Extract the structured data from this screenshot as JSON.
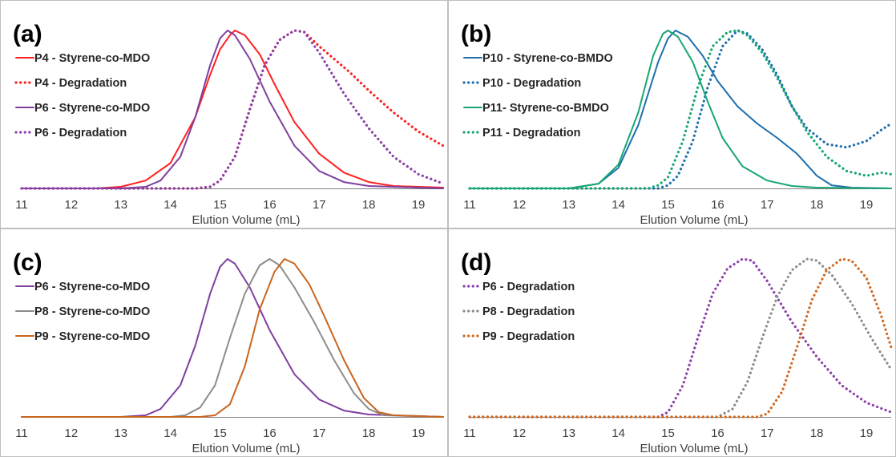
{
  "chart_data": [
    {
      "type": "line",
      "panel_label": "(a)",
      "xlabel": "Elution Volume (mL)",
      "ylabel": "",
      "xlim": [
        11,
        19.5
      ],
      "ylim": [
        0,
        1
      ],
      "xticks": [
        "11",
        "12",
        "13",
        "14",
        "15",
        "16",
        "17",
        "18",
        "19"
      ],
      "grid": false,
      "legend_position": "top-left",
      "series": [
        {
          "name": "P4 - Styrene-co-MDO",
          "color": "#ff2020",
          "style": "solid",
          "points": [
            [
              11,
              0
            ],
            [
              12.5,
              0
            ],
            [
              13,
              0.01
            ],
            [
              13.5,
              0.05
            ],
            [
              14,
              0.16
            ],
            [
              14.5,
              0.45
            ],
            [
              14.8,
              0.72
            ],
            [
              15.0,
              0.88
            ],
            [
              15.2,
              0.97
            ],
            [
              15.3,
              1.0
            ],
            [
              15.5,
              0.97
            ],
            [
              15.8,
              0.85
            ],
            [
              16.1,
              0.66
            ],
            [
              16.5,
              0.42
            ],
            [
              17,
              0.22
            ],
            [
              17.5,
              0.1
            ],
            [
              18,
              0.04
            ],
            [
              18.5,
              0.015
            ],
            [
              19,
              0.01
            ],
            [
              19.5,
              0.005
            ]
          ]
        },
        {
          "name": "P4 - Degradation",
          "color": "#ff2020",
          "style": "dotted",
          "points": [
            [
              11,
              0
            ],
            [
              14.5,
              0
            ],
            [
              14.8,
              0.01
            ],
            [
              15.0,
              0.05
            ],
            [
              15.3,
              0.2
            ],
            [
              15.6,
              0.5
            ],
            [
              15.9,
              0.78
            ],
            [
              16.2,
              0.94
            ],
            [
              16.5,
              1.0
            ],
            [
              16.7,
              0.99
            ],
            [
              17,
              0.9
            ],
            [
              17.3,
              0.82
            ],
            [
              17.6,
              0.74
            ],
            [
              18,
              0.62
            ],
            [
              18.5,
              0.48
            ],
            [
              19,
              0.36
            ],
            [
              19.5,
              0.27
            ]
          ]
        },
        {
          "name": "P6 - Styrene-co-MDO",
          "color": "#7f3f9f",
          "style": "solid",
          "points": [
            [
              11,
              0
            ],
            [
              13,
              0
            ],
            [
              13.5,
              0.01
            ],
            [
              13.8,
              0.05
            ],
            [
              14.2,
              0.2
            ],
            [
              14.5,
              0.45
            ],
            [
              14.8,
              0.78
            ],
            [
              15.0,
              0.95
            ],
            [
              15.15,
              1.0
            ],
            [
              15.3,
              0.97
            ],
            [
              15.6,
              0.82
            ],
            [
              16,
              0.55
            ],
            [
              16.5,
              0.27
            ],
            [
              17,
              0.11
            ],
            [
              17.5,
              0.04
            ],
            [
              18,
              0.015
            ],
            [
              19,
              0.005
            ],
            [
              19.5,
              0
            ]
          ]
        },
        {
          "name": "P6 - Degradation",
          "color": "#8a3fa8",
          "style": "dotted",
          "points": [
            [
              11,
              0
            ],
            [
              14.5,
              0
            ],
            [
              14.8,
              0.01
            ],
            [
              15.0,
              0.05
            ],
            [
              15.3,
              0.2
            ],
            [
              15.6,
              0.5
            ],
            [
              15.9,
              0.78
            ],
            [
              16.2,
              0.94
            ],
            [
              16.5,
              1.0
            ],
            [
              16.7,
              0.99
            ],
            [
              17,
              0.86
            ],
            [
              17.5,
              0.6
            ],
            [
              18,
              0.38
            ],
            [
              18.5,
              0.2
            ],
            [
              19,
              0.09
            ],
            [
              19.5,
              0.03
            ]
          ]
        }
      ]
    },
    {
      "type": "line",
      "panel_label": "(b)",
      "xlabel": "Elution Volume (mL)",
      "ylabel": "",
      "xlim": [
        11,
        19.5
      ],
      "ylim": [
        0,
        1
      ],
      "xticks": [
        "11",
        "12",
        "13",
        "14",
        "15",
        "16",
        "17",
        "18",
        "19"
      ],
      "grid": false,
      "legend_position": "top-left",
      "series": [
        {
          "name": "P10 - Styrene-co-BMDO",
          "color": "#1f6fae",
          "style": "solid",
          "points": [
            [
              11,
              0
            ],
            [
              13,
              0
            ],
            [
              13.6,
              0.03
            ],
            [
              14,
              0.13
            ],
            [
              14.4,
              0.4
            ],
            [
              14.8,
              0.8
            ],
            [
              15.0,
              0.95
            ],
            [
              15.15,
              1.0
            ],
            [
              15.4,
              0.96
            ],
            [
              15.7,
              0.84
            ],
            [
              16,
              0.68
            ],
            [
              16.4,
              0.52
            ],
            [
              16.8,
              0.41
            ],
            [
              17.2,
              0.32
            ],
            [
              17.6,
              0.22
            ],
            [
              18,
              0.08
            ],
            [
              18.3,
              0.02
            ],
            [
              18.7,
              0.005
            ],
            [
              19.5,
              0
            ]
          ]
        },
        {
          "name": "P10 - Degradation",
          "color": "#1f6fae",
          "style": "dotted",
          "points": [
            [
              11,
              0
            ],
            [
              14.8,
              0
            ],
            [
              15.0,
              0.02
            ],
            [
              15.2,
              0.08
            ],
            [
              15.5,
              0.3
            ],
            [
              15.8,
              0.64
            ],
            [
              16.1,
              0.9
            ],
            [
              16.4,
              1.0
            ],
            [
              16.6,
              0.98
            ],
            [
              16.9,
              0.88
            ],
            [
              17.2,
              0.72
            ],
            [
              17.5,
              0.52
            ],
            [
              17.8,
              0.38
            ],
            [
              18.2,
              0.28
            ],
            [
              18.6,
              0.26
            ],
            [
              19,
              0.3
            ],
            [
              19.3,
              0.37
            ],
            [
              19.5,
              0.41
            ]
          ]
        },
        {
          "name": "P11- Styrene-co-BMDO",
          "color": "#17a673",
          "style": "solid",
          "points": [
            [
              11,
              0
            ],
            [
              13,
              0
            ],
            [
              13.6,
              0.03
            ],
            [
              14,
              0.15
            ],
            [
              14.4,
              0.48
            ],
            [
              14.7,
              0.84
            ],
            [
              14.9,
              0.98
            ],
            [
              15.0,
              1.0
            ],
            [
              15.2,
              0.96
            ],
            [
              15.5,
              0.8
            ],
            [
              15.8,
              0.55
            ],
            [
              16.1,
              0.32
            ],
            [
              16.5,
              0.14
            ],
            [
              17,
              0.05
            ],
            [
              17.5,
              0.015
            ],
            [
              18,
              0.005
            ],
            [
              19.5,
              0
            ]
          ]
        },
        {
          "name": "P11 - Degradation",
          "color": "#17a673",
          "style": "dotted",
          "points": [
            [
              11,
              0
            ],
            [
              14.6,
              0
            ],
            [
              14.8,
              0.02
            ],
            [
              15.0,
              0.07
            ],
            [
              15.3,
              0.3
            ],
            [
              15.6,
              0.64
            ],
            [
              15.9,
              0.9
            ],
            [
              16.2,
              0.99
            ],
            [
              16.4,
              1.0
            ],
            [
              16.6,
              0.97
            ],
            [
              16.9,
              0.86
            ],
            [
              17.2,
              0.7
            ],
            [
              17.5,
              0.52
            ],
            [
              17.8,
              0.36
            ],
            [
              18.2,
              0.2
            ],
            [
              18.6,
              0.11
            ],
            [
              19,
              0.08
            ],
            [
              19.3,
              0.1
            ],
            [
              19.5,
              0.09
            ]
          ]
        }
      ]
    },
    {
      "type": "line",
      "panel_label": "(c)",
      "xlabel": "Elution Volume (mL)",
      "ylabel": "",
      "xlim": [
        11,
        19.5
      ],
      "ylim": [
        0,
        1
      ],
      "xticks": [
        "11",
        "12",
        "13",
        "14",
        "15",
        "16",
        "17",
        "18",
        "19"
      ],
      "grid": false,
      "legend_position": "top-left",
      "series": [
        {
          "name": "P6 - Styrene-co-MDO",
          "color": "#7f3f9f",
          "style": "solid",
          "points": [
            [
              11,
              0
            ],
            [
              13,
              0
            ],
            [
              13.5,
              0.01
            ],
            [
              13.8,
              0.05
            ],
            [
              14.2,
              0.2
            ],
            [
              14.5,
              0.45
            ],
            [
              14.8,
              0.78
            ],
            [
              15.0,
              0.95
            ],
            [
              15.15,
              1.0
            ],
            [
              15.3,
              0.97
            ],
            [
              15.6,
              0.82
            ],
            [
              16,
              0.55
            ],
            [
              16.5,
              0.27
            ],
            [
              17,
              0.11
            ],
            [
              17.5,
              0.04
            ],
            [
              18,
              0.015
            ],
            [
              19,
              0.005
            ],
            [
              19.5,
              0
            ]
          ]
        },
        {
          "name": "P8 - Styrene-co-MDO",
          "color": "#8c8c8c",
          "style": "solid",
          "points": [
            [
              11,
              0
            ],
            [
              14,
              0
            ],
            [
              14.3,
              0.01
            ],
            [
              14.6,
              0.06
            ],
            [
              14.9,
              0.2
            ],
            [
              15.2,
              0.5
            ],
            [
              15.5,
              0.78
            ],
            [
              15.8,
              0.96
            ],
            [
              16,
              1.0
            ],
            [
              16.2,
              0.96
            ],
            [
              16.5,
              0.82
            ],
            [
              16.9,
              0.6
            ],
            [
              17.3,
              0.36
            ],
            [
              17.7,
              0.15
            ],
            [
              18,
              0.05
            ],
            [
              18.3,
              0.01
            ],
            [
              19.5,
              0
            ]
          ]
        },
        {
          "name": "P9 - Styrene-co-MDO",
          "color": "#c8651e",
          "style": "solid",
          "points": [
            [
              11,
              0
            ],
            [
              14.6,
              0
            ],
            [
              14.9,
              0.01
            ],
            [
              15.2,
              0.08
            ],
            [
              15.5,
              0.32
            ],
            [
              15.8,
              0.68
            ],
            [
              16.1,
              0.92
            ],
            [
              16.3,
              1.0
            ],
            [
              16.5,
              0.97
            ],
            [
              16.8,
              0.84
            ],
            [
              17.1,
              0.64
            ],
            [
              17.5,
              0.36
            ],
            [
              17.9,
              0.12
            ],
            [
              18.2,
              0.03
            ],
            [
              18.5,
              0.01
            ],
            [
              19.5,
              0
            ]
          ]
        }
      ]
    },
    {
      "type": "line",
      "panel_label": "(d)",
      "xlabel": "Elution Volume (mL)",
      "ylabel": "",
      "xlim": [
        11,
        19.5
      ],
      "ylim": [
        0,
        1
      ],
      "xticks": [
        "11",
        "12",
        "13",
        "14",
        "15",
        "16",
        "17",
        "18",
        "19"
      ],
      "grid": false,
      "legend_position": "top-left",
      "series": [
        {
          "name": "P6 - Degradation",
          "color": "#8a3fa8",
          "style": "dotted",
          "points": [
            [
              11,
              0
            ],
            [
              14.8,
              0
            ],
            [
              15.0,
              0.03
            ],
            [
              15.3,
              0.2
            ],
            [
              15.6,
              0.5
            ],
            [
              15.9,
              0.78
            ],
            [
              16.2,
              0.94
            ],
            [
              16.5,
              1.0
            ],
            [
              16.7,
              0.99
            ],
            [
              17,
              0.86
            ],
            [
              17.5,
              0.6
            ],
            [
              18,
              0.38
            ],
            [
              18.5,
              0.2
            ],
            [
              19,
              0.09
            ],
            [
              19.5,
              0.03
            ]
          ]
        },
        {
          "name": "P8 - Degradation",
          "color": "#8c8c8c",
          "style": "dotted",
          "points": [
            [
              11,
              0
            ],
            [
              16,
              0
            ],
            [
              16.3,
              0.05
            ],
            [
              16.6,
              0.22
            ],
            [
              16.9,
              0.5
            ],
            [
              17.2,
              0.76
            ],
            [
              17.5,
              0.93
            ],
            [
              17.8,
              1.0
            ],
            [
              18.0,
              0.99
            ],
            [
              18.3,
              0.9
            ],
            [
              18.7,
              0.72
            ],
            [
              19.1,
              0.5
            ],
            [
              19.5,
              0.3
            ]
          ]
        },
        {
          "name": "P9 - Degradation",
          "color": "#d2691e",
          "style": "dotted",
          "points": [
            [
              11,
              0
            ],
            [
              16.8,
              0
            ],
            [
              17.0,
              0.02
            ],
            [
              17.3,
              0.16
            ],
            [
              17.6,
              0.44
            ],
            [
              17.9,
              0.74
            ],
            [
              18.2,
              0.93
            ],
            [
              18.5,
              1.0
            ],
            [
              18.7,
              0.99
            ],
            [
              19.0,
              0.88
            ],
            [
              19.3,
              0.64
            ],
            [
              19.5,
              0.44
            ]
          ]
        }
      ]
    }
  ]
}
